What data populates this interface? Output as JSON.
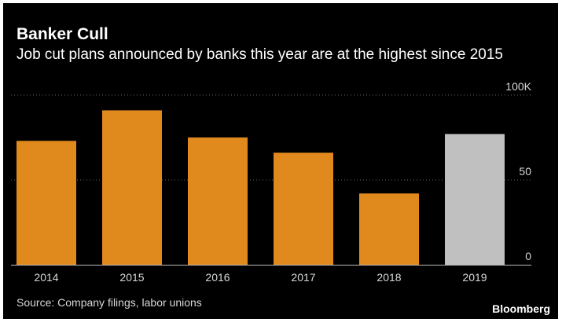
{
  "title": "Banker Cull",
  "subtitle": "Job cut plans announced by banks this year are at the highest since 2015",
  "source": "Source: Company filings, labor unions",
  "brand": "Bloomberg",
  "chart_data": {
    "type": "bar",
    "categories": [
      "2014",
      "2015",
      "2016",
      "2017",
      "2018",
      "2019"
    ],
    "values": [
      73,
      91,
      75,
      66,
      42,
      77
    ],
    "colors": [
      "#e08a1e",
      "#e08a1e",
      "#e08a1e",
      "#e08a1e",
      "#e08a1e",
      "#c0c0c0"
    ],
    "ylim": [
      0,
      100
    ],
    "yticks": [
      0,
      50,
      100
    ],
    "ytick_labels": [
      "0",
      "50",
      "100K"
    ],
    "grid": true,
    "gridline_color": "#666666"
  }
}
